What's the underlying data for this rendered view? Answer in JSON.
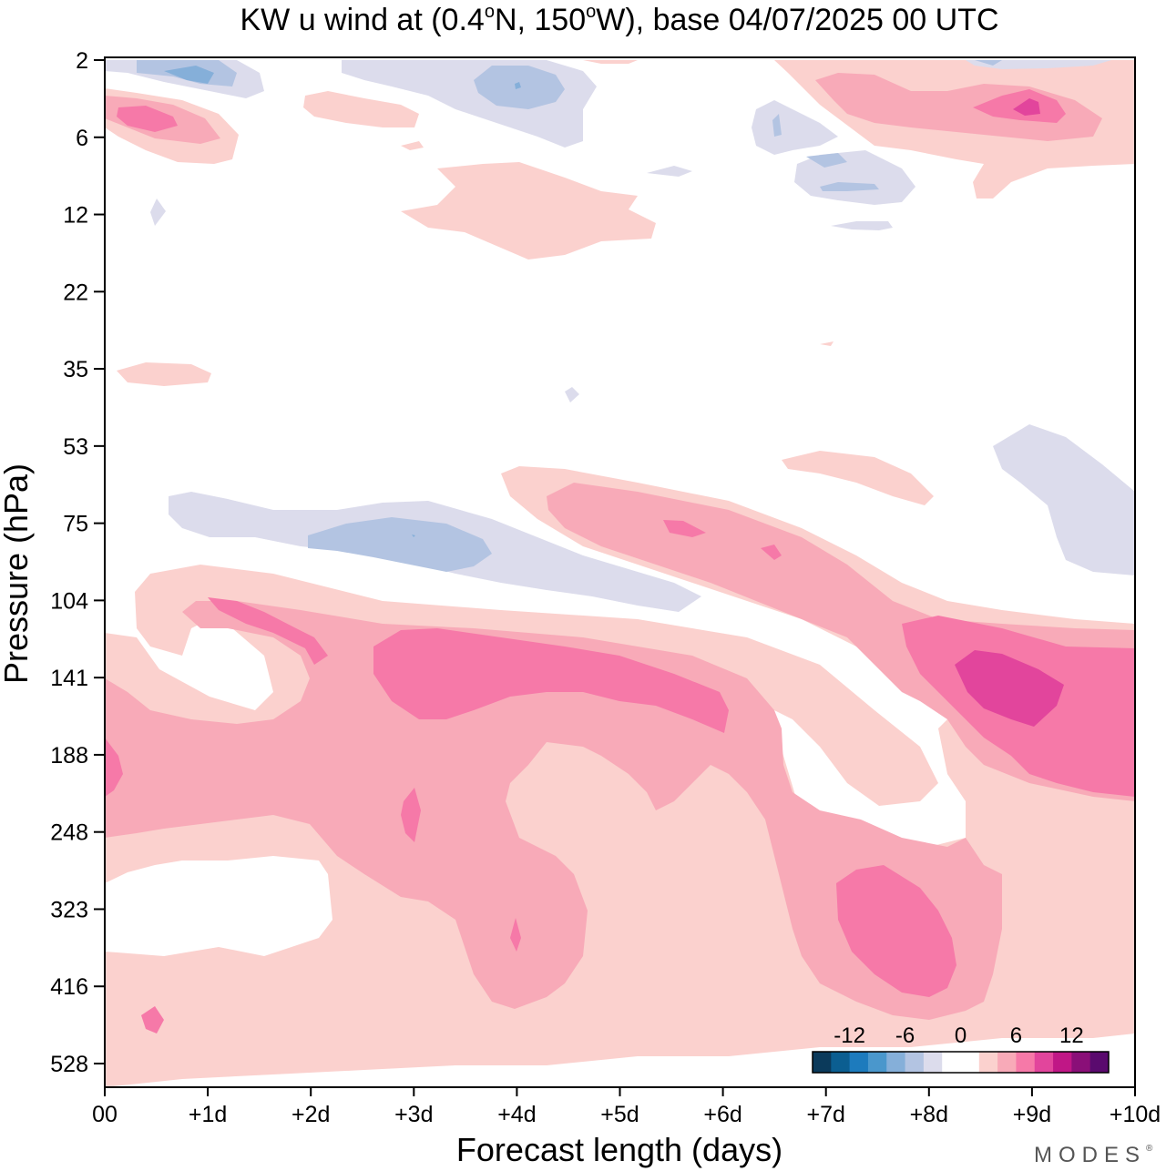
{
  "chart_data": {
    "type": "contour",
    "title": {
      "prefix": "KW u wind at (0.4",
      "deg1": "o",
      "mid": "N, 150",
      "deg2": "o",
      "suffix": "W),  base 04/07/2025  00 UTC"
    },
    "xlabel": "Forecast length (days)",
    "ylabel": "Pressure (hPa)",
    "x_range_days": [
      0,
      10
    ],
    "x_ticks": [
      {
        "value": 0,
        "label": "00"
      },
      {
        "value": 1,
        "label": "+1d"
      },
      {
        "value": 2,
        "label": "+2d"
      },
      {
        "value": 3,
        "label": "+3d"
      },
      {
        "value": 4,
        "label": "+4d"
      },
      {
        "value": 5,
        "label": "+5d"
      },
      {
        "value": 6,
        "label": "+6d"
      },
      {
        "value": 7,
        "label": "+7d"
      },
      {
        "value": 8,
        "label": "+8d"
      },
      {
        "value": 9,
        "label": "+9d"
      },
      {
        "value": 10,
        "label": "+10d"
      }
    ],
    "y_ticks": [
      "2",
      "6",
      "12",
      "22",
      "35",
      "53",
      "75",
      "104",
      "141",
      "188",
      "248",
      "323",
      "416",
      "528"
    ],
    "colorbar": {
      "labels": [
        "-12",
        "-6",
        "0",
        "6",
        "12"
      ],
      "label_values": [
        -12,
        -6,
        0,
        6,
        12
      ],
      "levels": [
        -16,
        -14,
        -12,
        -10,
        -8,
        -6,
        -4,
        -2,
        2,
        4,
        6,
        8,
        10,
        12,
        14,
        16
      ],
      "colors": [
        "#0b3a5b",
        "#0b5e91",
        "#1d7bbd",
        "#4a97cc",
        "#85afd9",
        "#b3c4e2",
        "#dcdcec",
        "#ffffff",
        "#ffffff",
        "#fbd1ce",
        "#f8aab8",
        "#f679a8",
        "#e2459c",
        "#c01786",
        "#8a0f78",
        "#5a0a6e"
      ],
      "positive_colors": [
        "#fbd1ce",
        "#f8aab8",
        "#f679a8",
        "#e2459c"
      ],
      "negative_colors": [
        "#dcdcec",
        "#b3c4e2",
        "#85afd9",
        "#4a97cc"
      ]
    },
    "features": [
      {
        "name": "upper-westerly-band",
        "type": "positive",
        "max_level": 12,
        "where": "300-528 hPa, days 0-10"
      },
      {
        "name": "mid-descending-band",
        "type": "positive",
        "max_level": 12,
        "where": "104-250 hPa, days 0-7"
      },
      {
        "name": "late-lower-jet",
        "type": "positive",
        "max_level": 12,
        "where": "110-190 hPa, days 8-10"
      },
      {
        "name": "upper-easterly-band",
        "type": "negative",
        "max_level": -4,
        "where": "60-110 hPa, days 0.5-5.5"
      },
      {
        "name": "stratospheric-patches",
        "type": "mixed",
        "where": "2-15 hPa, days 0-10"
      }
    ]
  },
  "watermark": "MODES"
}
